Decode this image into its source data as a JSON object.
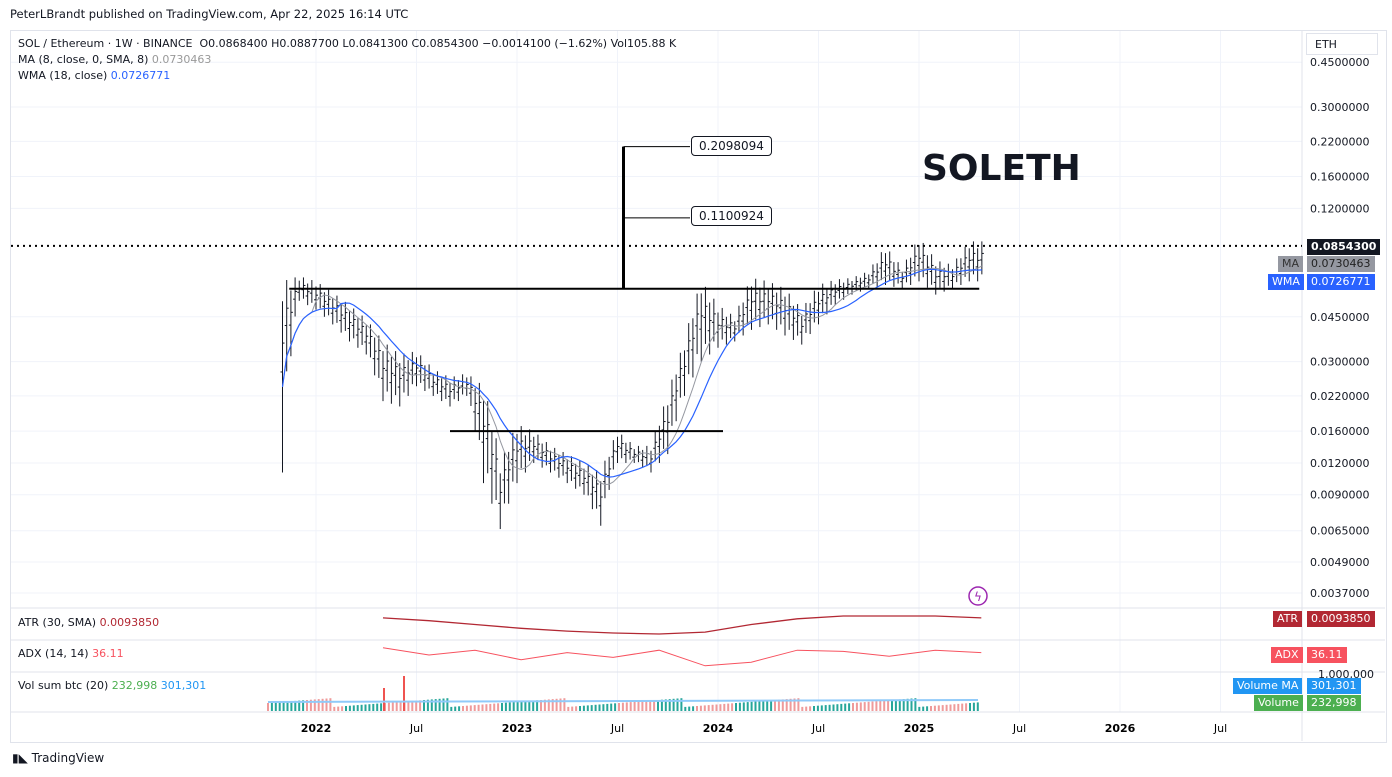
{
  "header": {
    "published": "PeterLBrandt published on TradingView.com, Apr 22, 2025 16:14 UTC"
  },
  "legend": {
    "symbol": "SOL / Ethereum · 1W · BINANCE",
    "ohlc": "O0.0868400 H0.0887700 L0.0841300 C0.0854300 −0.0014100 (−1.62%) Vol105.88 K",
    "ma_label": "MA (8, close, 0, SMA, 8)",
    "ma_value": "0.0730463",
    "wma_label": "WMA (18, close)",
    "wma_value": "0.0726771"
  },
  "currency": "ETH",
  "annotations": {
    "title": "SOLETH",
    "target1": "0.2098094",
    "target2": "0.1100924"
  },
  "price_tags": {
    "last": "0.0854300",
    "ma_name": "MA",
    "ma": "0.0730463",
    "wma_name": "WMA",
    "wma": "0.0726771"
  },
  "panes": {
    "atr_label": "ATR (30, SMA)",
    "atr_value": "0.0093850",
    "atr_name": "ATR",
    "adx_label": "ADX (14, 14)",
    "adx_value": "36.11",
    "adx_name": "ADX",
    "vol_label": "Vol sum btc (20)",
    "vol_value": "232,998",
    "vol_ma_value": "301,301",
    "vol_name": "Volume",
    "vol_ma_name": "Volume MA",
    "vol_axis": "1,000,000"
  },
  "footer": {
    "logo": "TradingView"
  },
  "colors": {
    "last": "#131722",
    "ma": "#9598a1",
    "wma": "#2962ff",
    "atr": "#b22833",
    "adx": "#f7525f",
    "vol_ma": "#2196f3",
    "vol": "#4caf50"
  },
  "chart_data": {
    "type": "ohlc-bar",
    "scale": "log",
    "y_ticks": [
      "0.4500000",
      "0.3000000",
      "0.2200000",
      "0.1600000",
      "0.1200000",
      "0.0450000",
      "0.0300000",
      "0.0220000",
      "0.0160000",
      "0.0120000",
      "0.0090000",
      "0.0065000",
      "0.0049000",
      "0.0037000"
    ],
    "x_ticks": [
      "2022",
      "Jul",
      "2023",
      "Jul",
      "2024",
      "Jul",
      "2025",
      "Jul",
      "2026",
      "Jul"
    ],
    "bars": [
      [
        "2021-11",
        0.011,
        0.062
      ],
      [
        "2021-12",
        0.052,
        0.065
      ],
      [
        "2022-01",
        0.048,
        0.062
      ],
      [
        "2022-02",
        0.042,
        0.056
      ],
      [
        "2022-03",
        0.036,
        0.05
      ],
      [
        "2022-04",
        0.032,
        0.044
      ],
      [
        "2022-05",
        0.021,
        0.036
      ],
      [
        "2022-06",
        0.02,
        0.032
      ],
      [
        "2022-07",
        0.024,
        0.033
      ],
      [
        "2022-08",
        0.022,
        0.028
      ],
      [
        "2022-09",
        0.02,
        0.026
      ],
      [
        "2022-10",
        0.022,
        0.027
      ],
      [
        "2022-11",
        0.01,
        0.024
      ],
      [
        "2022-12",
        0.0066,
        0.012
      ],
      [
        "2023-01",
        0.01,
        0.017
      ],
      [
        "2023-02",
        0.012,
        0.016
      ],
      [
        "2023-03",
        0.011,
        0.014
      ],
      [
        "2023-04",
        0.01,
        0.013
      ],
      [
        "2023-05",
        0.009,
        0.012
      ],
      [
        "2023-06",
        0.0068,
        0.011
      ],
      [
        "2023-07",
        0.012,
        0.016
      ],
      [
        "2023-08",
        0.012,
        0.014
      ],
      [
        "2023-09",
        0.011,
        0.014
      ],
      [
        "2023-10",
        0.013,
        0.022
      ],
      [
        "2023-11",
        0.022,
        0.036
      ],
      [
        "2023-12",
        0.03,
        0.062
      ],
      [
        "2024-01",
        0.034,
        0.05
      ],
      [
        "2024-02",
        0.036,
        0.045
      ],
      [
        "2024-03",
        0.04,
        0.064
      ],
      [
        "2024-04",
        0.042,
        0.062
      ],
      [
        "2024-05",
        0.038,
        0.058
      ],
      [
        "2024-06",
        0.035,
        0.048
      ],
      [
        "2024-07",
        0.042,
        0.06
      ],
      [
        "2024-08",
        0.05,
        0.063
      ],
      [
        "2024-09",
        0.055,
        0.064
      ],
      [
        "2024-10",
        0.058,
        0.068
      ],
      [
        "2024-11",
        0.06,
        0.085
      ],
      [
        "2024-12",
        0.058,
        0.07
      ],
      [
        "2025-01",
        0.062,
        0.092
      ],
      [
        "2025-02",
        0.055,
        0.075
      ],
      [
        "2025-03",
        0.058,
        0.072
      ],
      [
        "2025-04",
        0.062,
        0.089
      ]
    ],
    "last_price": 0.08543,
    "neckline": {
      "price": 0.058,
      "from": "2021-12",
      "to": "2025-04"
    },
    "lower_line": {
      "price": 0.016,
      "from": "2022-09",
      "to": "2024-01"
    },
    "measure": {
      "date": "2023-07",
      "from": 0.058,
      "to": 0.2098094,
      "mid": 0.1100924
    }
  }
}
